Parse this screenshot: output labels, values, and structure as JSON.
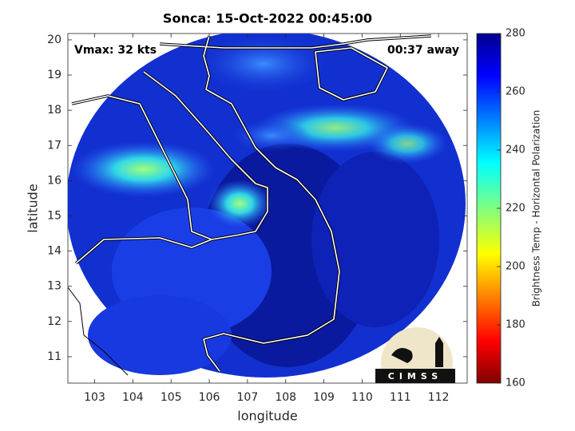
{
  "chart_data": {
    "type": "map",
    "title": "Sonca: 15-Oct-2022 00:45:00",
    "annotations": [
      "Vmax: 32 kts",
      "00:37 away"
    ],
    "xlabel": "longitude",
    "ylabel": "latitude",
    "xlim": [
      102.3,
      112.75
    ],
    "xticks": [
      103,
      104,
      105,
      106,
      107,
      108,
      109,
      110,
      111,
      112
    ],
    "ylim": [
      10.25,
      20.18
    ],
    "yticks": [
      11,
      12,
      13,
      14,
      15,
      16,
      17,
      18,
      19,
      20
    ],
    "colorbar": {
      "label": "Brightness Temp - Horizontal Polarization",
      "lim": [
        160,
        280
      ],
      "ticks": [
        160,
        180,
        200,
        220,
        240,
        260,
        280
      ]
    },
    "logo": "CIMSS"
  }
}
